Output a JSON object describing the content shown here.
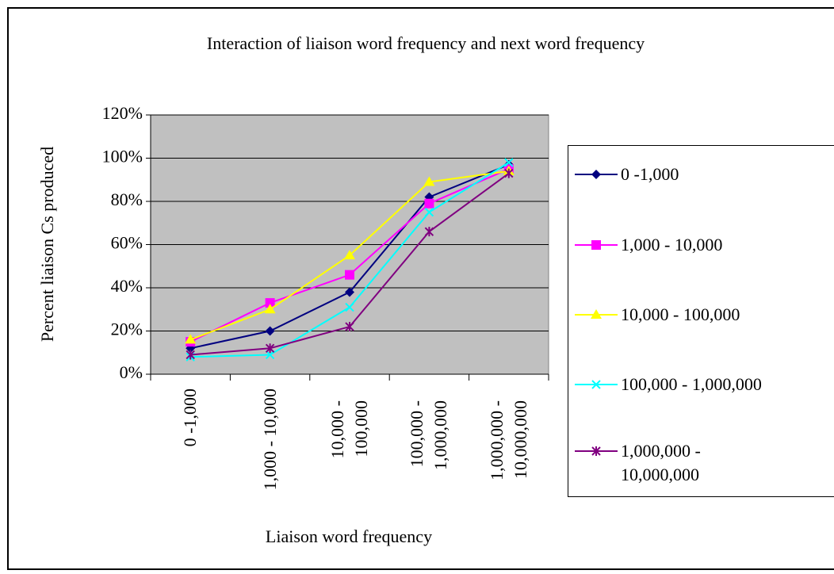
{
  "chart_data": {
    "type": "line",
    "title": "Interaction of liaison word frequency and next word frequency",
    "x_label": "Liaison word frequency",
    "y_label": "Percent liaison Cs produced",
    "categories": [
      "0 -1,000",
      "1,000 - 10,000",
      "10,000 - 100,000",
      "100,000 - 1,000,000",
      "1,000,000 - 10,000,000"
    ],
    "series": [
      {
        "name": "0 -1,000",
        "color": "#000080",
        "marker": "diamond",
        "values": [
          12,
          20,
          38,
          82,
          97
        ]
      },
      {
        "name": "1,000 - 10,000",
        "color": "#ff00ff",
        "marker": "square",
        "values": [
          15,
          33,
          46,
          79,
          95
        ]
      },
      {
        "name": "10,000 - 100,000",
        "color": "#ffff00",
        "marker": "triangle",
        "values": [
          16,
          30,
          55,
          89,
          94
        ]
      },
      {
        "name": "100,000 - 1,000,000",
        "color": "#00ffff",
        "marker": "x",
        "values": [
          8,
          9,
          31,
          75,
          98
        ]
      },
      {
        "name": "1,000,000 - 10,000,000",
        "color": "#800080",
        "marker": "star",
        "values": [
          9,
          12,
          22,
          66,
          93
        ]
      }
    ],
    "ylim": [
      0,
      120
    ],
    "yticks": [
      {
        "value": 0,
        "label": "0%"
      },
      {
        "value": 20,
        "label": "20%"
      },
      {
        "value": 40,
        "label": "40%"
      },
      {
        "value": 60,
        "label": "60%"
      },
      {
        "value": 80,
        "label": "80%"
      },
      {
        "value": 100,
        "label": "100%"
      },
      {
        "value": 120,
        "label": "120%"
      }
    ],
    "grid": true,
    "legend": "right"
  }
}
